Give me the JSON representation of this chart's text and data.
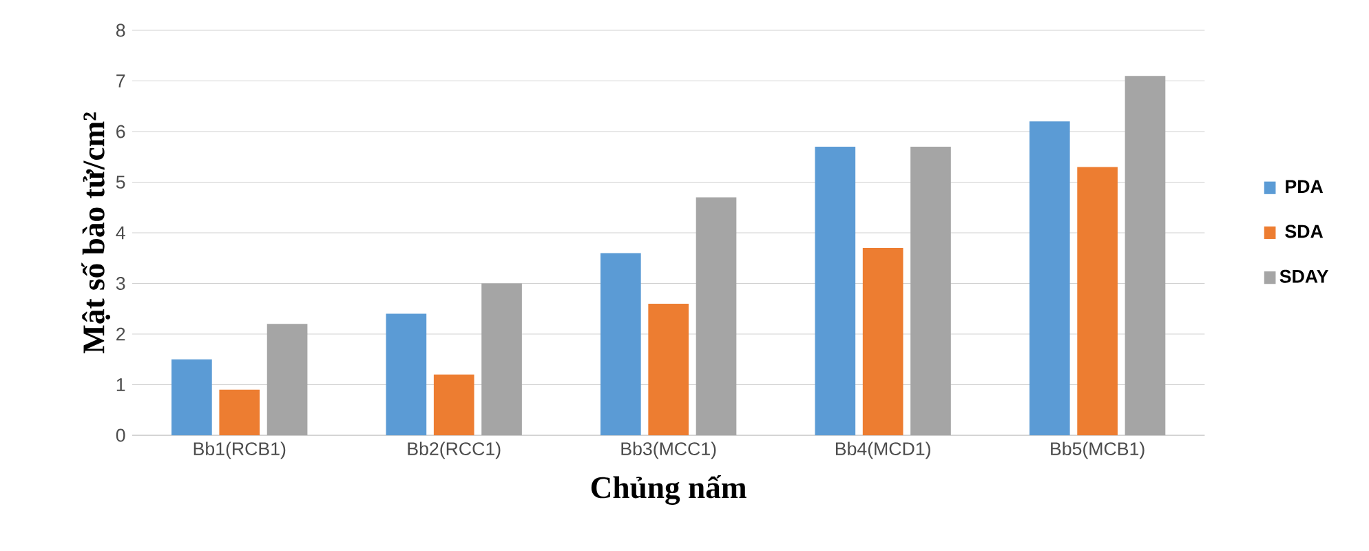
{
  "chart_data": {
    "type": "bar",
    "xlabel": "Chủng nấm",
    "ylabel": "Mật số bào tử/cm²",
    "categories": [
      "Bb1(RCB1)",
      "Bb2(RCC1)",
      "Bb3(MCC1)",
      "Bb4(MCD1)",
      "Bb5(MCB1)"
    ],
    "series": [
      {
        "name": "PDA",
        "color": "#5b9bd5",
        "values": [
          1.5,
          2.4,
          3.6,
          5.7,
          6.2
        ]
      },
      {
        "name": "SDA",
        "color": "#ed7d31",
        "values": [
          0.9,
          1.2,
          2.6,
          3.7,
          5.3
        ]
      },
      {
        "name": "SDAY",
        "color": "#a5a5a5",
        "values": [
          2.2,
          3.0,
          4.7,
          5.7,
          7.1
        ]
      }
    ],
    "ylim": [
      0,
      8
    ],
    "yticks": [
      0,
      1,
      2,
      3,
      4,
      5,
      6,
      7,
      8
    ],
    "grid": "y",
    "legend": "right"
  }
}
